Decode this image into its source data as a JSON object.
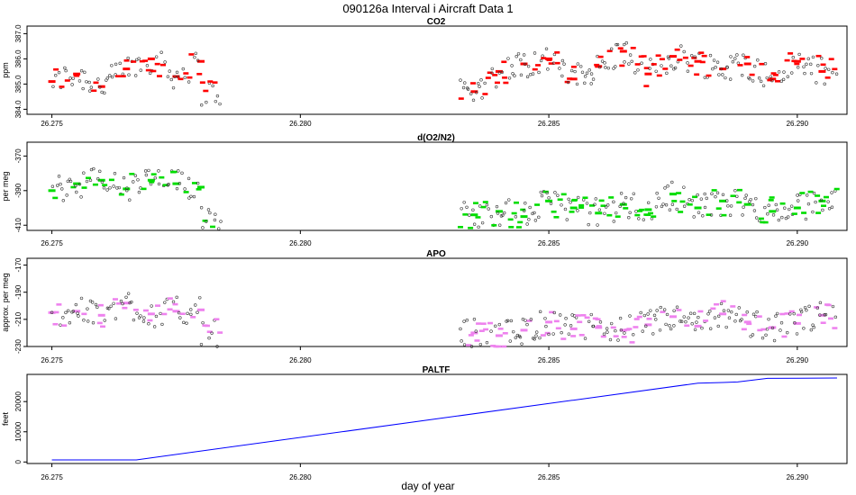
{
  "figure": {
    "title": "090126a   Interval i Aircraft Data 1",
    "xlabel": "day of year"
  },
  "chart_data": [
    {
      "type": "scatter",
      "title": "CO2",
      "ylabel": "ppm",
      "xlim": [
        26.2745,
        26.291
      ],
      "ylim": [
        383.8,
        387.3
      ],
      "x_ticks": [
        "26.275",
        "26.280",
        "26.285",
        "26.290"
      ],
      "y_ticks": [
        "384.0",
        "385.0",
        "386.0",
        "387.0"
      ],
      "color": "#ff0000",
      "point_style": "open-circle",
      "segment_style": "short-dash",
      "data_gap": [
        26.2784,
        26.2832
      ],
      "series": [
        {
          "label_role": "points",
          "x": [
            26.275,
            26.2755,
            26.276,
            26.2765,
            26.277,
            26.2775,
            26.278,
            26.2835,
            26.284,
            26.2845,
            26.285,
            26.2855,
            26.286,
            26.2865,
            26.287,
            26.2875,
            26.288,
            26.2885,
            26.289,
            26.2895,
            26.29,
            26.2905
          ],
          "y": [
            385.1,
            385.4,
            384.9,
            385.6,
            386.0,
            385.3,
            385.9,
            384.7,
            385.5,
            385.8,
            386.0,
            385.2,
            385.7,
            386.3,
            385.4,
            386.1,
            385.9,
            385.6,
            385.8,
            385.2,
            385.9,
            385.5
          ]
        }
      ]
    },
    {
      "type": "scatter",
      "title": "d(O2/N2)",
      "ylabel": "per meg",
      "xlim": [
        26.2745,
        26.291
      ],
      "ylim": [
        -413,
        -362
      ],
      "x_ticks": [
        "26.275",
        "26.280",
        "26.285",
        "26.290"
      ],
      "y_ticks": [
        "-410",
        "-390",
        "-370"
      ],
      "color": "#00dd00",
      "point_style": "open-circle",
      "segment_style": "short-dash",
      "data_gap": [
        26.2784,
        26.2832
      ],
      "series": [
        {
          "label_role": "points",
          "x": [
            26.275,
            26.2755,
            26.276,
            26.2765,
            26.277,
            26.2775,
            26.278,
            26.2835,
            26.284,
            26.2845,
            26.285,
            26.2855,
            26.286,
            26.2865,
            26.287,
            26.2875,
            26.288,
            26.2885,
            26.289,
            26.2895,
            26.29,
            26.2905
          ],
          "y": [
            -390,
            -386,
            -384,
            -389,
            -384,
            -386,
            -388,
            -404,
            -402,
            -405,
            -396,
            -400,
            -403,
            -398,
            -401,
            -392,
            -400,
            -396,
            -398,
            -402,
            -400,
            -396
          ]
        }
      ]
    },
    {
      "type": "scatter",
      "title": "APO",
      "ylabel": "approx. per meg",
      "xlim": [
        26.2745,
        26.291
      ],
      "ylim": [
        -230,
        -165
      ],
      "x_ticks": [
        "26.275",
        "26.280",
        "26.285",
        "26.290"
      ],
      "y_ticks": [
        "-230",
        "-210",
        "-190",
        "-170"
      ],
      "color": "#ee82ee",
      "point_style": "open-circle",
      "segment_style": "short-dash",
      "data_gap": [
        26.2784,
        26.2832
      ],
      "series": [
        {
          "label_role": "points",
          "x": [
            26.275,
            26.2755,
            26.276,
            26.2765,
            26.277,
            26.2775,
            26.278,
            26.2835,
            26.284,
            26.2845,
            26.285,
            26.2855,
            26.286,
            26.2865,
            26.287,
            26.2875,
            26.288,
            26.2885,
            26.289,
            26.2895,
            26.29,
            26.2905
          ],
          "y": [
            -205,
            -204,
            -207,
            -198,
            -206,
            -204,
            -203,
            -220,
            -222,
            -218,
            -212,
            -217,
            -216,
            -218,
            -214,
            -208,
            -215,
            -206,
            -212,
            -216,
            -213,
            -207
          ]
        }
      ]
    },
    {
      "type": "line",
      "title": "PALTF",
      "ylabel": "feet",
      "xlim": [
        26.2745,
        26.291
      ],
      "ylim": [
        -500,
        29000
      ],
      "x_ticks": [
        "26.275",
        "26.280",
        "26.285",
        "26.290"
      ],
      "y_ticks": [
        "0",
        "10000",
        "20000"
      ],
      "color": "#0000ff",
      "series": [
        {
          "label_role": "line",
          "x": [
            26.275,
            26.2765,
            26.2767,
            26.288,
            26.2885,
            26.2888,
            26.2894,
            26.2908
          ],
          "y": [
            700,
            700,
            700,
            26100,
            26300,
            26500,
            27700,
            27800
          ]
        }
      ]
    }
  ]
}
